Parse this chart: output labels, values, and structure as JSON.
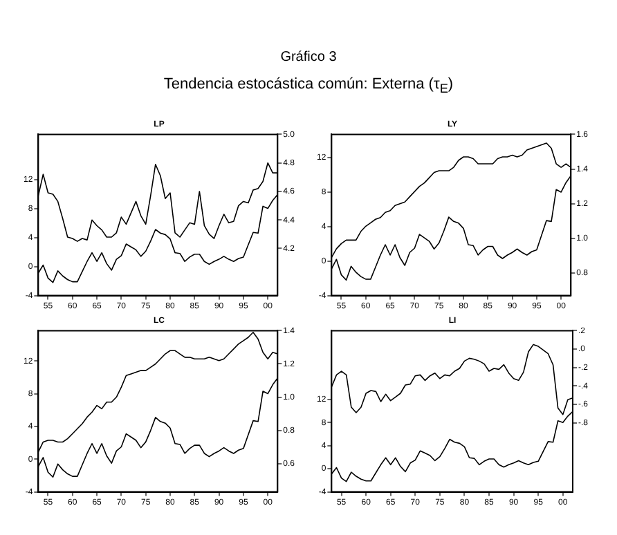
{
  "chart_data": [
    {
      "type": "other",
      "title": "Gráfico 3",
      "subtitle": "Tendencia estocástica común: Externa (τ$_{E}$)"
    },
    {
      "type": "line",
      "title": "LP",
      "x": [
        1953,
        1954,
        1955,
        1956,
        1957,
        1958,
        1959,
        1960,
        1961,
        1962,
        1963,
        1964,
        1965,
        1966,
        1967,
        1968,
        1969,
        1970,
        1971,
        1972,
        1973,
        1974,
        1975,
        1976,
        1977,
        1978,
        1979,
        1980,
        1981,
        1982,
        1983,
        1984,
        1985,
        1986,
        1987,
        1988,
        1989,
        1990,
        1991,
        1992,
        1993,
        1994,
        1995,
        1996,
        1997,
        1998,
        1999,
        2000,
        2001,
        2002
      ],
      "xlim": [
        1953,
        2002
      ],
      "xticks": [
        {
          "value": 1955,
          "label": "55"
        },
        {
          "value": 1960,
          "label": "60"
        },
        {
          "value": 1965,
          "label": "65"
        },
        {
          "value": 1970,
          "label": "70"
        },
        {
          "value": 1975,
          "label": "75"
        },
        {
          "value": 1980,
          "label": "80"
        },
        {
          "value": 1985,
          "label": "85"
        },
        {
          "value": 1990,
          "label": "90"
        },
        {
          "value": 1995,
          "label": "95"
        },
        {
          "value": 2000,
          "label": "00"
        }
      ],
      "ylim": [
        -4,
        18.2
      ],
      "yticks": [
        -4,
        0,
        4,
        8,
        12
      ],
      "y2lim": [
        3.87,
        5.0
      ],
      "y2ticks": [
        {
          "value": 4.2,
          "label": "4.2"
        },
        {
          "value": 4.4,
          "label": "4.4"
        },
        {
          "value": 4.6,
          "label": "4.6"
        },
        {
          "value": 4.8,
          "label": "4.8"
        },
        {
          "value": 5.0,
          "label": "5.0"
        }
      ],
      "grid": false,
      "series": [
        {
          "color": "#000000",
          "values": [
            -0.9,
            0.2,
            -1.6,
            -2.2,
            -0.6,
            -1.3,
            -1.8,
            -2.1,
            -2.1,
            -0.7,
            0.7,
            1.9,
            0.7,
            1.9,
            0.4,
            -0.5,
            1,
            1.5,
            3.1,
            2.7,
            2.3,
            1.4,
            2.1,
            3.5,
            5.1,
            4.6,
            4.4,
            3.8,
            1.9,
            1.8,
            0.7,
            1.3,
            1.7,
            1.7,
            0.7,
            0.3,
            0.7,
            1,
            1.4,
            1,
            0.7,
            1.1,
            1.3,
            3,
            4.7,
            4.6,
            8.3,
            8,
            9.1,
            9.9
          ]
        },
        {
          "color": "#000000",
          "axis": "y2",
          "values": [
            4.57,
            4.72,
            4.59,
            4.58,
            4.53,
            4.41,
            4.28,
            4.27,
            4.25,
            4.27,
            4.26,
            4.4,
            4.36,
            4.33,
            4.28,
            4.28,
            4.31,
            4.42,
            4.37,
            4.45,
            4.53,
            4.43,
            4.37,
            4.57,
            4.79,
            4.71,
            4.55,
            4.59,
            4.31,
            4.28,
            4.33,
            4.38,
            4.37,
            4.6,
            4.36,
            4.3,
            4.27,
            4.36,
            4.44,
            4.38,
            4.39,
            4.5,
            4.53,
            4.52,
            4.61,
            4.62,
            4.67,
            4.8,
            4.73,
            4.73
          ]
        }
      ]
    },
    {
      "type": "line",
      "title": "LY",
      "x": [
        1953,
        1954,
        1955,
        1956,
        1957,
        1958,
        1959,
        1960,
        1961,
        1962,
        1963,
        1964,
        1965,
        1966,
        1967,
        1968,
        1969,
        1970,
        1971,
        1972,
        1973,
        1974,
        1975,
        1976,
        1977,
        1978,
        1979,
        1980,
        1981,
        1982,
        1983,
        1984,
        1985,
        1986,
        1987,
        1988,
        1989,
        1990,
        1991,
        1992,
        1993,
        1994,
        1995,
        1996,
        1997,
        1998,
        1999,
        2000,
        2001,
        2002
      ],
      "xlim": [
        1953,
        2002
      ],
      "xticks": [
        {
          "value": 1955,
          "label": "55"
        },
        {
          "value": 1960,
          "label": "60"
        },
        {
          "value": 1965,
          "label": "65"
        },
        {
          "value": 1970,
          "label": "70"
        },
        {
          "value": 1975,
          "label": "75"
        },
        {
          "value": 1980,
          "label": "80"
        },
        {
          "value": 1985,
          "label": "85"
        },
        {
          "value": 1990,
          "label": "90"
        },
        {
          "value": 1995,
          "label": "95"
        },
        {
          "value": 2000,
          "label": "00"
        }
      ],
      "ylim": [
        -4,
        14.7
      ],
      "yticks": [
        -4,
        0,
        4,
        8,
        12
      ],
      "y2lim": [
        0.67,
        1.6
      ],
      "y2ticks": [
        {
          "value": 0.8,
          "label": "0.8"
        },
        {
          "value": 1.0,
          "label": "1.0"
        },
        {
          "value": 1.2,
          "label": "1.2"
        },
        {
          "value": 1.4,
          "label": "1.4"
        },
        {
          "value": 1.6,
          "label": "1.6"
        }
      ],
      "grid": false,
      "series": [
        {
          "color": "#000000",
          "values": [
            -0.9,
            0.2,
            -1.6,
            -2.2,
            -0.6,
            -1.3,
            -1.8,
            -2.1,
            -2.1,
            -0.7,
            0.7,
            1.9,
            0.7,
            1.9,
            0.4,
            -0.5,
            1,
            1.5,
            3.1,
            2.7,
            2.3,
            1.4,
            2.1,
            3.5,
            5.1,
            4.6,
            4.4,
            3.8,
            1.9,
            1.8,
            0.7,
            1.3,
            1.7,
            1.7,
            0.7,
            0.3,
            0.7,
            1,
            1.4,
            1,
            0.7,
            1.1,
            1.3,
            3,
            4.7,
            4.6,
            8.3,
            8,
            9.1,
            9.9
          ]
        },
        {
          "color": "#000000",
          "axis": "y2",
          "values": [
            0.89,
            0.94,
            0.97,
            0.99,
            0.99,
            0.99,
            1.04,
            1.07,
            1.09,
            1.11,
            1.12,
            1.15,
            1.16,
            1.19,
            1.2,
            1.21,
            1.24,
            1.27,
            1.3,
            1.32,
            1.35,
            1.38,
            1.39,
            1.39,
            1.39,
            1.41,
            1.45,
            1.47,
            1.47,
            1.46,
            1.43,
            1.43,
            1.43,
            1.43,
            1.46,
            1.47,
            1.47,
            1.48,
            1.47,
            1.48,
            1.51,
            1.52,
            1.53,
            1.54,
            1.55,
            1.52,
            1.43,
            1.41,
            1.43,
            1.41
          ]
        }
      ]
    },
    {
      "type": "line",
      "title": "LC",
      "x": [
        1953,
        1954,
        1955,
        1956,
        1957,
        1958,
        1959,
        1960,
        1961,
        1962,
        1963,
        1964,
        1965,
        1966,
        1967,
        1968,
        1969,
        1970,
        1971,
        1972,
        1973,
        1974,
        1975,
        1976,
        1977,
        1978,
        1979,
        1980,
        1981,
        1982,
        1983,
        1984,
        1985,
        1986,
        1987,
        1988,
        1989,
        1990,
        1991,
        1992,
        1993,
        1994,
        1995,
        1996,
        1997,
        1998,
        1999,
        2000,
        2001,
        2002
      ],
      "xlim": [
        1953,
        2002
      ],
      "xticks": [
        {
          "value": 1955,
          "label": "55"
        },
        {
          "value": 1960,
          "label": "60"
        },
        {
          "value": 1965,
          "label": "65"
        },
        {
          "value": 1970,
          "label": "70"
        },
        {
          "value": 1975,
          "label": "75"
        },
        {
          "value": 1980,
          "label": "80"
        },
        {
          "value": 1985,
          "label": "85"
        },
        {
          "value": 1990,
          "label": "90"
        },
        {
          "value": 1995,
          "label": "95"
        },
        {
          "value": 2000,
          "label": "00"
        }
      ],
      "ylim": [
        -4,
        15.7
      ],
      "yticks": [
        -4,
        0,
        4,
        8,
        12
      ],
      "y2lim": [
        0.43,
        1.4
      ],
      "y2ticks": [
        {
          "value": 0.6,
          "label": "0.6"
        },
        {
          "value": 0.8,
          "label": "0.8"
        },
        {
          "value": 1.0,
          "label": "1.0"
        },
        {
          "value": 1.2,
          "label": "1.2"
        },
        {
          "value": 1.4,
          "label": "1.4"
        }
      ],
      "grid": false,
      "series": [
        {
          "color": "#000000",
          "values": [
            -0.9,
            0.2,
            -1.6,
            -2.2,
            -0.6,
            -1.3,
            -1.8,
            -2.1,
            -2.1,
            -0.7,
            0.7,
            1.9,
            0.7,
            1.9,
            0.4,
            -0.5,
            1,
            1.5,
            3.1,
            2.7,
            2.3,
            1.4,
            2.1,
            3.5,
            5.1,
            4.6,
            4.4,
            3.8,
            1.9,
            1.8,
            0.7,
            1.3,
            1.7,
            1.7,
            0.7,
            0.3,
            0.7,
            1,
            1.4,
            1,
            0.7,
            1.1,
            1.3,
            3,
            4.7,
            4.6,
            8.3,
            8,
            9.1,
            9.9
          ]
        },
        {
          "color": "#000000",
          "axis": "y2",
          "values": [
            0.67,
            0.73,
            0.74,
            0.74,
            0.73,
            0.73,
            0.75,
            0.78,
            0.81,
            0.84,
            0.88,
            0.91,
            0.95,
            0.93,
            0.97,
            0.97,
            1.0,
            1.06,
            1.13,
            1.14,
            1.15,
            1.16,
            1.16,
            1.18,
            1.2,
            1.23,
            1.26,
            1.28,
            1.28,
            1.26,
            1.24,
            1.24,
            1.23,
            1.23,
            1.23,
            1.24,
            1.23,
            1.22,
            1.23,
            1.26,
            1.29,
            1.32,
            1.34,
            1.36,
            1.39,
            1.35,
            1.27,
            1.23,
            1.27,
            1.26
          ]
        }
      ]
    },
    {
      "type": "line",
      "title": "LI",
      "x": [
        1953,
        1954,
        1955,
        1956,
        1957,
        1958,
        1959,
        1960,
        1961,
        1962,
        1963,
        1964,
        1965,
        1966,
        1967,
        1968,
        1969,
        1970,
        1971,
        1972,
        1973,
        1974,
        1975,
        1976,
        1977,
        1978,
        1979,
        1980,
        1981,
        1982,
        1983,
        1984,
        1985,
        1986,
        1987,
        1988,
        1989,
        1990,
        1991,
        1992,
        1993,
        1994,
        1995,
        1996,
        1997,
        1998,
        1999,
        2000,
        2001,
        2002
      ],
      "xlim": [
        1953,
        2002
      ],
      "xticks": [
        {
          "value": 1955,
          "label": "55"
        },
        {
          "value": 1960,
          "label": "60"
        },
        {
          "value": 1965,
          "label": "65"
        },
        {
          "value": 1970,
          "label": "70"
        },
        {
          "value": 1975,
          "label": "75"
        },
        {
          "value": 1980,
          "label": "80"
        },
        {
          "value": 1985,
          "label": "85"
        },
        {
          "value": 1990,
          "label": "90"
        },
        {
          "value": 1995,
          "label": "95"
        },
        {
          "value": 2000,
          "label": "00"
        }
      ],
      "ylim": [
        -4,
        23.9
      ],
      "yticks": [
        -4,
        0,
        4,
        8,
        12
      ],
      "y2lim": [
        -1.55,
        0.2
      ],
      "y2ticks": [
        {
          "value": -0.8,
          "label": "-.8"
        },
        {
          "value": -0.6,
          "label": "-.6"
        },
        {
          "value": -0.4,
          "label": "-.4"
        },
        {
          "value": -0.2,
          "label": "-.2"
        },
        {
          "value": 0.0,
          "label": ".0"
        },
        {
          "value": 0.2,
          "label": ".2"
        }
      ],
      "grid": false,
      "series": [
        {
          "color": "#000000",
          "values": [
            -0.9,
            0.2,
            -1.6,
            -2.2,
            -0.6,
            -1.3,
            -1.8,
            -2.1,
            -2.1,
            -0.7,
            0.7,
            1.9,
            0.7,
            1.9,
            0.4,
            -0.5,
            1,
            1.5,
            3.1,
            2.7,
            2.3,
            1.4,
            2.1,
            3.5,
            5.1,
            4.6,
            4.4,
            3.8,
            1.9,
            1.8,
            0.7,
            1.3,
            1.7,
            1.7,
            0.7,
            0.3,
            0.7,
            1,
            1.4,
            1,
            0.7,
            1.1,
            1.3,
            3,
            4.7,
            4.6,
            8.3,
            8,
            9.1,
            9.9
          ]
        },
        {
          "color": "#000000",
          "axis": "y2",
          "values": [
            -0.41,
            -0.28,
            -0.24,
            -0.28,
            -0.63,
            -0.69,
            -0.63,
            -0.48,
            -0.45,
            -0.46,
            -0.57,
            -0.49,
            -0.56,
            -0.52,
            -0.48,
            -0.39,
            -0.38,
            -0.29,
            -0.28,
            -0.34,
            -0.29,
            -0.26,
            -0.32,
            -0.28,
            -0.29,
            -0.24,
            -0.21,
            -0.13,
            -0.1,
            -0.11,
            -0.13,
            -0.16,
            -0.24,
            -0.21,
            -0.22,
            -0.17,
            -0.26,
            -0.32,
            -0.34,
            -0.25,
            -0.03,
            0.05,
            0.03,
            -0.01,
            -0.05,
            -0.17,
            -0.64,
            -0.71,
            -0.55,
            -0.53
          ]
        }
      ]
    }
  ]
}
